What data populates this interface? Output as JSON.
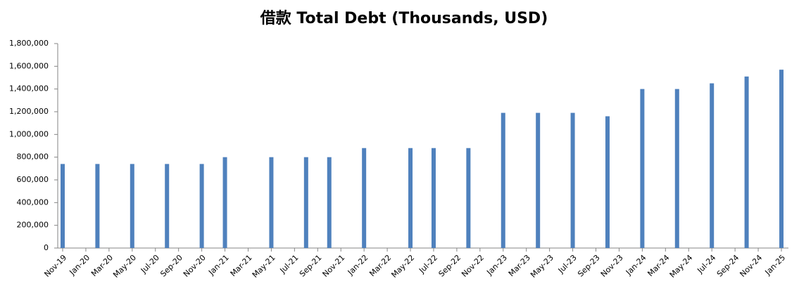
{
  "chart_data": {
    "type": "bar",
    "title": "借款 Total Debt (Thousands, USD)",
    "x": [
      "2019-11",
      "2020-02",
      "2020-05",
      "2020-08",
      "2020-11",
      "2021-01",
      "2021-05",
      "2021-08",
      "2021-10",
      "2022-01",
      "2022-05",
      "2022-07",
      "2022-10",
      "2023-01",
      "2023-04",
      "2023-07",
      "2023-10",
      "2024-01",
      "2024-04",
      "2024-07",
      "2024-10",
      "2025-01"
    ],
    "values": [
      740000,
      740000,
      740000,
      740000,
      740000,
      800000,
      800000,
      800000,
      800000,
      880000,
      880000,
      880000,
      880000,
      1190000,
      1190000,
      1190000,
      1160000,
      1400000,
      1400000,
      1450000,
      1510000,
      1570000
    ],
    "color": "#4f81bd",
    "xlim": [
      "2019-11",
      "2025-01"
    ],
    "xticks": [
      {
        "value": "2019-11",
        "label": "Nov-19"
      },
      {
        "value": "2020-01",
        "label": "Jan-20"
      },
      {
        "value": "2020-03",
        "label": "Mar-20"
      },
      {
        "value": "2020-05",
        "label": "May-20"
      },
      {
        "value": "2020-07",
        "label": "Jul-20"
      },
      {
        "value": "2020-09",
        "label": "Sep-20"
      },
      {
        "value": "2020-11",
        "label": "Nov-20"
      },
      {
        "value": "2021-01",
        "label": "Jan-21"
      },
      {
        "value": "2021-03",
        "label": "Mar-21"
      },
      {
        "value": "2021-05",
        "label": "May-21"
      },
      {
        "value": "2021-07",
        "label": "Jul-21"
      },
      {
        "value": "2021-09",
        "label": "Sep-21"
      },
      {
        "value": "2021-11",
        "label": "Nov-21"
      },
      {
        "value": "2022-01",
        "label": "Jan-22"
      },
      {
        "value": "2022-03",
        "label": "Mar-22"
      },
      {
        "value": "2022-05",
        "label": "May-22"
      },
      {
        "value": "2022-07",
        "label": "Jul-22"
      },
      {
        "value": "2022-09",
        "label": "Sep-22"
      },
      {
        "value": "2022-11",
        "label": "Nov-22"
      },
      {
        "value": "2023-01",
        "label": "Jan-23"
      },
      {
        "value": "2023-03",
        "label": "Mar-23"
      },
      {
        "value": "2023-05",
        "label": "May-23"
      },
      {
        "value": "2023-07",
        "label": "Jul-23"
      },
      {
        "value": "2023-09",
        "label": "Sep-23"
      },
      {
        "value": "2023-11",
        "label": "Nov-23"
      },
      {
        "value": "2024-01",
        "label": "Jan-24"
      },
      {
        "value": "2024-03",
        "label": "Mar-24"
      },
      {
        "value": "2024-05",
        "label": "May-24"
      },
      {
        "value": "2024-07",
        "label": "Jul-24"
      },
      {
        "value": "2024-09",
        "label": "Sep-24"
      },
      {
        "value": "2024-11",
        "label": "Nov-24"
      },
      {
        "value": "2025-01",
        "label": "Jan-25"
      }
    ],
    "ylim": [
      0,
      1800000
    ],
    "yticks": [
      0,
      {
        "value": 200000,
        "label": "200,000"
      },
      {
        "value": 400000,
        "label": "400,000"
      },
      {
        "value": 600000,
        "label": "600,000"
      },
      {
        "value": 800000,
        "label": "800,000"
      },
      {
        "value": 1000000,
        "label": "1,000,000"
      },
      {
        "value": 1200000,
        "label": "1,200,000"
      },
      {
        "value": 1400000,
        "label": "1,400,000"
      },
      {
        "value": 1600000,
        "label": "1,600,000"
      },
      {
        "value": 1800000,
        "label": "1,800,000"
      }
    ],
    "grid": false
  }
}
